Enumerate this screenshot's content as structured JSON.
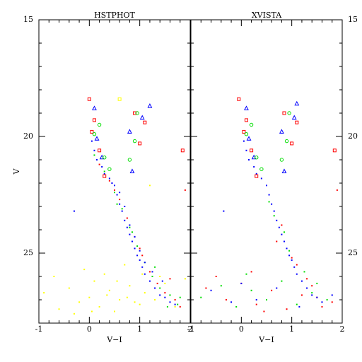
{
  "chart_data": [
    {
      "type": "scatter",
      "title": "HSTPHOT",
      "x_label": "V−I",
      "y_label": "V",
      "xlim": [
        -1,
        2
      ],
      "ylim": [
        15,
        28
      ],
      "y_inverted": true,
      "xticks": [
        -1,
        0,
        1,
        2
      ],
      "yticks": [
        15,
        20,
        25
      ],
      "xticks_minor": [
        -0.8,
        -0.6,
        -0.4,
        -0.2,
        0.2,
        0.4,
        0.6,
        0.8,
        1.2,
        1.4,
        1.6,
        1.8
      ],
      "yticks_minor": [
        16,
        17,
        18,
        19,
        21,
        22,
        23,
        24,
        26,
        27
      ],
      "series": [
        {
          "color": "#ffff00",
          "marker": "dot",
          "x": [
            -0.9,
            -0.4,
            -0.2,
            0.0,
            0.2,
            0.4,
            0.6,
            0.8,
            1.0,
            1.3,
            1.5,
            0.3,
            0.7,
            1.9,
            -0.6,
            0.1,
            1.1,
            0.5,
            1.2,
            -0.7,
            -0.1,
            0.35,
            0.9,
            1.7,
            0.55,
            1.4,
            -0.3,
            0.05,
            0.75,
            1.05
          ],
          "values": [
            26.7,
            26.5,
            27.1,
            26.9,
            27.3,
            26.6,
            27.0,
            26.4,
            27.2,
            27.0,
            26.3,
            25.9,
            25.5,
            26.1,
            27.4,
            26.2,
            26.7,
            27.5,
            22.1,
            26.0,
            25.7,
            26.8,
            27.1,
            27.3,
            26.2,
            26.0,
            27.6,
            27.5,
            26.9,
            25.9
          ]
        },
        {
          "color": "#ff0000",
          "marker": "dot",
          "x": [
            0.2,
            0.4,
            0.6,
            0.75,
            0.9,
            1.05,
            1.2,
            1.35,
            1.5,
            1.7,
            1.8,
            0.5,
            1.0,
            1.9,
            1.6
          ],
          "values": [
            21.2,
            21.9,
            22.7,
            23.5,
            24.3,
            25.1,
            25.8,
            26.3,
            26.7,
            27.0,
            27.3,
            22.3,
            24.8,
            22.3,
            26.1
          ]
        },
        {
          "color": "#00dd00",
          "marker": "dot",
          "x": [
            0.1,
            0.3,
            0.5,
            0.65,
            0.8,
            0.95,
            1.1,
            1.25,
            1.4,
            1.6,
            1.75,
            0.55,
            0.85,
            1.3,
            1.55,
            1.8
          ],
          "values": [
            20.8,
            21.5,
            22.4,
            23.1,
            23.9,
            24.7,
            25.4,
            26.0,
            26.5,
            26.8,
            27.2,
            22.9,
            24.1,
            25.6,
            27.3,
            26.9
          ]
        },
        {
          "color": "#0000ff",
          "marker": "dot",
          "x": [
            0.05,
            0.1,
            0.15,
            0.25,
            0.3,
            0.4,
            0.5,
            0.55,
            0.6,
            0.65,
            0.7,
            0.75,
            0.8,
            0.85,
            0.9,
            0.95,
            1.0,
            1.05,
            1.1,
            1.2,
            1.3,
            1.4,
            1.5,
            1.6,
            1.7,
            -0.3,
            0.7,
            0.8,
            0.9,
            1.0,
            1.1,
            0.6,
            0.45,
            1.25,
            1.45
          ],
          "values": [
            20.2,
            20.6,
            21.0,
            21.3,
            21.6,
            21.8,
            22.1,
            22.5,
            22.9,
            23.2,
            23.6,
            23.9,
            24.2,
            24.5,
            24.8,
            25.1,
            25.3,
            25.6,
            25.9,
            26.2,
            26.5,
            26.8,
            26.9,
            27.1,
            27.2,
            23.2,
            23.0,
            23.8,
            24.3,
            24.9,
            25.4,
            22.4,
            22.0,
            25.8,
            26.2
          ]
        },
        {
          "color": "#ff0000",
          "marker": "square",
          "x": [
            0.0,
            0.1,
            0.05,
            0.9,
            1.0,
            0.2,
            1.85,
            1.1,
            0.3
          ],
          "values": [
            18.4,
            19.3,
            19.8,
            19.0,
            20.3,
            20.6,
            20.6,
            19.4,
            21.7
          ]
        },
        {
          "color": "#0000ff",
          "marker": "triangle",
          "x": [
            0.1,
            0.8,
            1.05,
            0.15,
            0.85,
            1.2,
            0.25
          ],
          "values": [
            18.8,
            19.8,
            19.2,
            20.1,
            21.5,
            18.7,
            20.9
          ]
        },
        {
          "color": "#00dd00",
          "marker": "circle",
          "x": [
            0.2,
            0.9,
            0.3,
            0.95,
            0.4,
            0.8,
            0.1
          ],
          "values": [
            19.5,
            20.2,
            20.9,
            19.0,
            21.4,
            21.0,
            19.9
          ]
        },
        {
          "color": "#ffff00",
          "marker": "square",
          "x": [
            0.6
          ],
          "values": [
            18.4
          ]
        }
      ]
    },
    {
      "type": "scatter",
      "title": "XVISTA",
      "x_label": "V−I",
      "xlim": [
        -1,
        2
      ],
      "ylim": [
        15,
        28
      ],
      "y_inverted": true,
      "xticks": [
        -1,
        0,
        1,
        2
      ],
      "yticks": [
        15,
        20,
        25
      ],
      "xticks_minor": [
        -0.8,
        -0.6,
        -0.4,
        -0.2,
        0.2,
        0.4,
        0.6,
        0.8,
        1.2,
        1.4,
        1.6,
        1.8
      ],
      "yticks_minor": [
        16,
        17,
        18,
        19,
        21,
        22,
        23,
        24,
        26,
        27
      ],
      "series": [
        {
          "color": "#ff0000",
          "marker": "dot",
          "x": [
            -0.7,
            -0.3,
            0.0,
            0.3,
            0.6,
            0.9,
            1.2,
            1.5,
            1.8,
            0.2,
            0.7,
            1.0,
            1.3,
            1.6,
            -0.5,
            0.45,
            1.4,
            0.8,
            1.1,
            1.9
          ],
          "values": [
            26.5,
            27.0,
            26.3,
            27.2,
            26.6,
            27.4,
            26.8,
            26.9,
            27.1,
            25.8,
            24.5,
            25.2,
            26.1,
            27.3,
            26.0,
            27.5,
            26.4,
            23.8,
            25.5,
            22.3
          ]
        },
        {
          "color": "#00dd00",
          "marker": "dot",
          "x": [
            -0.8,
            -0.4,
            -0.1,
            0.2,
            0.5,
            0.8,
            1.1,
            1.4,
            1.7,
            0.55,
            0.85,
            1.25,
            0.65,
            0.95,
            1.5,
            0.1
          ],
          "values": [
            26.9,
            26.4,
            27.3,
            26.6,
            27.0,
            26.2,
            27.2,
            26.7,
            27.0,
            22.8,
            24.1,
            25.8,
            23.4,
            24.9,
            26.3,
            25.9
          ]
        },
        {
          "color": "#0000ff",
          "marker": "dot",
          "x": [
            0.05,
            0.1,
            0.15,
            0.25,
            0.3,
            0.4,
            0.5,
            0.55,
            0.6,
            0.65,
            0.7,
            0.75,
            0.8,
            0.85,
            0.9,
            0.95,
            1.0,
            1.05,
            1.1,
            1.2,
            1.3,
            1.4,
            1.5,
            1.6,
            -0.35,
            -0.6,
            -0.2,
            0.3,
            0.7,
            1.15,
            1.8,
            0.0
          ],
          "values": [
            20.2,
            20.6,
            21.0,
            21.3,
            21.6,
            21.8,
            22.1,
            22.5,
            22.9,
            23.2,
            23.6,
            23.9,
            24.2,
            24.5,
            24.8,
            25.1,
            25.3,
            25.6,
            25.9,
            26.2,
            26.5,
            26.8,
            26.9,
            27.1,
            23.2,
            26.6,
            27.1,
            27.0,
            26.5,
            27.3,
            26.8,
            26.3
          ]
        },
        {
          "color": "#ff0000",
          "marker": "square",
          "x": [
            -0.05,
            0.1,
            0.05,
            0.85,
            1.0,
            0.2,
            1.85,
            1.1,
            0.3
          ],
          "values": [
            18.4,
            19.3,
            19.8,
            19.0,
            20.3,
            20.6,
            20.6,
            19.4,
            21.7
          ]
        },
        {
          "color": "#0000ff",
          "marker": "triangle",
          "x": [
            0.1,
            0.8,
            1.05,
            0.15,
            0.85,
            1.1,
            0.25
          ],
          "values": [
            18.8,
            19.8,
            19.2,
            20.1,
            21.5,
            18.6,
            20.9
          ]
        },
        {
          "color": "#00dd00",
          "marker": "circle",
          "x": [
            0.2,
            0.9,
            0.3,
            0.95,
            0.4,
            0.8,
            0.1
          ],
          "values": [
            19.5,
            20.2,
            20.9,
            19.0,
            21.4,
            21.0,
            19.9
          ]
        }
      ]
    }
  ]
}
